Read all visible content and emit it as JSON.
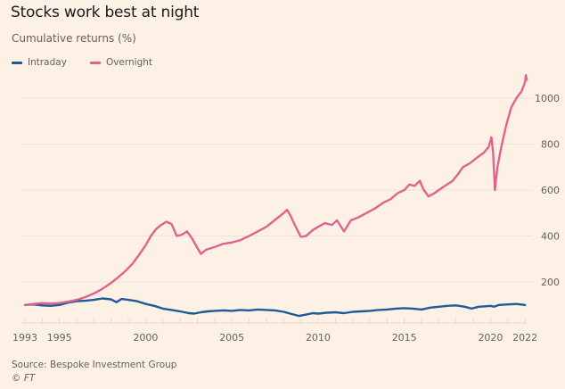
{
  "chart_data": {
    "type": "line",
    "title": "Stocks work best at night",
    "subtitle": "Cumulative returns (%)",
    "xlabel": "",
    "ylabel": "Cumulative returns (%)",
    "xlim": [
      1993,
      2022
    ],
    "ylim": [
      0,
      1100
    ],
    "grid": true,
    "legend_position": "top-left",
    "x_ticks": [
      1993,
      1995,
      2000,
      2005,
      2010,
      2015,
      2020,
      2022
    ],
    "y_ticks": [
      200,
      400,
      600,
      800,
      1000
    ],
    "series": [
      {
        "name": "Intraday",
        "color": "#1f5a96",
        "points": [
          [
            1993.0,
            100
          ],
          [
            1993.5,
            102
          ],
          [
            1994.0,
            98
          ],
          [
            1994.5,
            96
          ],
          [
            1995.0,
            100
          ],
          [
            1995.5,
            110
          ],
          [
            1996.0,
            116
          ],
          [
            1996.5,
            118
          ],
          [
            1997.0,
            122
          ],
          [
            1997.5,
            128
          ],
          [
            1998.0,
            124
          ],
          [
            1998.3,
            112
          ],
          [
            1998.6,
            126
          ],
          [
            1999.0,
            122
          ],
          [
            1999.5,
            116
          ],
          [
            2000.0,
            104
          ],
          [
            2000.5,
            96
          ],
          [
            2001.0,
            84
          ],
          [
            2001.5,
            78
          ],
          [
            2002.0,
            72
          ],
          [
            2002.5,
            64
          ],
          [
            2002.8,
            62
          ],
          [
            2003.2,
            68
          ],
          [
            2003.6,
            72
          ],
          [
            2004.0,
            74
          ],
          [
            2004.5,
            76
          ],
          [
            2005.0,
            74
          ],
          [
            2005.5,
            78
          ],
          [
            2006.0,
            76
          ],
          [
            2006.5,
            80
          ],
          [
            2007.0,
            78
          ],
          [
            2007.5,
            76
          ],
          [
            2008.0,
            70
          ],
          [
            2008.5,
            60
          ],
          [
            2008.9,
            52
          ],
          [
            2009.3,
            58
          ],
          [
            2009.7,
            64
          ],
          [
            2010.0,
            62
          ],
          [
            2010.5,
            66
          ],
          [
            2011.0,
            68
          ],
          [
            2011.5,
            64
          ],
          [
            2012.0,
            70
          ],
          [
            2012.5,
            72
          ],
          [
            2013.0,
            74
          ],
          [
            2013.5,
            78
          ],
          [
            2014.0,
            80
          ],
          [
            2014.5,
            84
          ],
          [
            2015.0,
            86
          ],
          [
            2015.5,
            84
          ],
          [
            2016.0,
            80
          ],
          [
            2016.5,
            88
          ],
          [
            2017.0,
            92
          ],
          [
            2017.5,
            96
          ],
          [
            2018.0,
            98
          ],
          [
            2018.5,
            92
          ],
          [
            2018.9,
            84
          ],
          [
            2019.3,
            92
          ],
          [
            2019.7,
            94
          ],
          [
            2020.0,
            96
          ],
          [
            2020.2,
            92
          ],
          [
            2020.5,
            100
          ],
          [
            2021.0,
            102
          ],
          [
            2021.5,
            104
          ],
          [
            2022.0,
            100
          ]
        ]
      },
      {
        "name": "Overnight",
        "color": "#e0638c",
        "points": [
          [
            1993.0,
            100
          ],
          [
            1993.5,
            104
          ],
          [
            1994.0,
            108
          ],
          [
            1994.5,
            106
          ],
          [
            1995.0,
            108
          ],
          [
            1995.5,
            114
          ],
          [
            1996.0,
            122
          ],
          [
            1996.5,
            134
          ],
          [
            1997.0,
            150
          ],
          [
            1997.5,
            170
          ],
          [
            1998.0,
            196
          ],
          [
            1998.4,
            220
          ],
          [
            1998.8,
            246
          ],
          [
            1999.2,
            276
          ],
          [
            1999.6,
            316
          ],
          [
            2000.0,
            360
          ],
          [
            2000.3,
            400
          ],
          [
            2000.6,
            430
          ],
          [
            2000.9,
            448
          ],
          [
            2001.2,
            462
          ],
          [
            2001.5,
            452
          ],
          [
            2001.8,
            400
          ],
          [
            2002.1,
            406
          ],
          [
            2002.4,
            420
          ],
          [
            2002.7,
            388
          ],
          [
            2003.0,
            348
          ],
          [
            2003.2,
            322
          ],
          [
            2003.5,
            340
          ],
          [
            2004.0,
            352
          ],
          [
            2004.5,
            366
          ],
          [
            2005.0,
            372
          ],
          [
            2005.5,
            382
          ],
          [
            2006.0,
            400
          ],
          [
            2006.5,
            420
          ],
          [
            2007.0,
            440
          ],
          [
            2007.5,
            470
          ],
          [
            2008.0,
            500
          ],
          [
            2008.2,
            514
          ],
          [
            2008.4,
            488
          ],
          [
            2008.7,
            440
          ],
          [
            2009.0,
            396
          ],
          [
            2009.3,
            400
          ],
          [
            2009.7,
            426
          ],
          [
            2010.0,
            440
          ],
          [
            2010.4,
            456
          ],
          [
            2010.8,
            448
          ],
          [
            2011.1,
            468
          ],
          [
            2011.5,
            420
          ],
          [
            2011.9,
            468
          ],
          [
            2012.3,
            480
          ],
          [
            2012.8,
            500
          ],
          [
            2013.3,
            520
          ],
          [
            2013.8,
            546
          ],
          [
            2014.2,
            560
          ],
          [
            2014.6,
            586
          ],
          [
            2015.0,
            600
          ],
          [
            2015.3,
            624
          ],
          [
            2015.6,
            618
          ],
          [
            2015.9,
            640
          ],
          [
            2016.1,
            604
          ],
          [
            2016.4,
            572
          ],
          [
            2016.7,
            584
          ],
          [
            2017.0,
            600
          ],
          [
            2017.4,
            620
          ],
          [
            2017.8,
            640
          ],
          [
            2018.1,
            668
          ],
          [
            2018.4,
            700
          ],
          [
            2018.8,
            716
          ],
          [
            2019.2,
            740
          ],
          [
            2019.6,
            762
          ],
          [
            2019.9,
            788
          ],
          [
            2020.05,
            830
          ],
          [
            2020.15,
            760
          ],
          [
            2020.25,
            600
          ],
          [
            2020.4,
            700
          ],
          [
            2020.6,
            780
          ],
          [
            2020.9,
            880
          ],
          [
            2021.2,
            960
          ],
          [
            2021.5,
            1000
          ],
          [
            2021.8,
            1030
          ],
          [
            2022.0,
            1070
          ],
          [
            2022.05,
            1100
          ],
          [
            2022.1,
            1080
          ]
        ]
      }
    ]
  },
  "header": {
    "title": "Stocks work best at night",
    "subtitle": "Cumulative returns (%)"
  },
  "legend": [
    {
      "label": "Intraday",
      "color": "#1f5a96"
    },
    {
      "label": "Overnight",
      "color": "#e0638c"
    }
  ],
  "footer": {
    "source": "Source: Bespoke Investment Group",
    "copyright": "© FT"
  }
}
